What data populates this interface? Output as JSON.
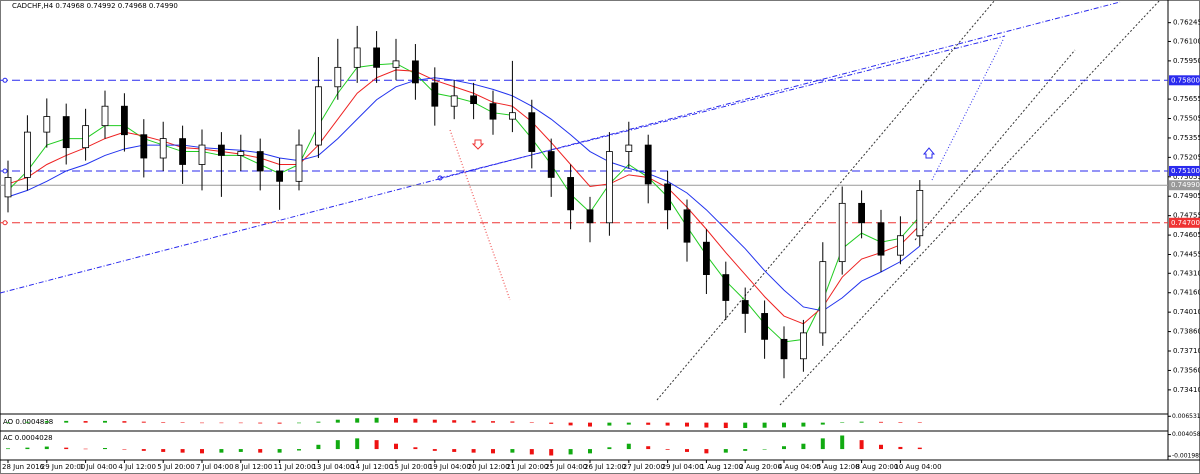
{
  "chart_data": {
    "type": "candlestick",
    "title": "CADCHF,H4 0.74968 0.74992 0.74968 0.74990",
    "categories": [
      "28 Jun 2016",
      null,
      "29 Jun 20:00",
      null,
      "1 Jul 04:00",
      null,
      "4 Jul 12:00",
      null,
      "5 Jul 20:00",
      null,
      "7 Jul 04:00",
      null,
      "8 Jul 12:00",
      null,
      "11 Jul 20:00",
      null,
      "13 Jul 04:00",
      null,
      "14 Jul 12:00",
      null,
      "15 Jul 20:00",
      null,
      "19 Jul 04:00",
      null,
      "20 Jul 12:00",
      null,
      "21 Jul 20:00",
      null,
      "25 Jul 04:00",
      null,
      "26 Jul 12:00",
      null,
      "27 Jul 20:00",
      null,
      "29 Jul 04:00",
      null,
      "1 Aug 12:00",
      null,
      "2 Aug 20:00",
      null,
      "4 Aug 04:00",
      null,
      "5 Aug 12:00",
      null,
      "8 Aug 20:00",
      null,
      "10 Aug 04:00",
      null
    ],
    "open": [
      0.749,
      0.7505,
      0.754,
      0.7552,
      0.7528,
      0.7545,
      0.756,
      0.7538,
      0.752,
      0.7535,
      0.7515,
      0.753,
      0.7522,
      0.7525,
      0.751,
      0.7502,
      0.753,
      0.7575,
      0.759,
      0.7605,
      0.759,
      0.7595,
      0.7578,
      0.756,
      0.7568,
      0.7562,
      0.755,
      0.7555,
      0.7525,
      0.7505,
      0.748,
      0.747,
      0.7525,
      0.753,
      0.75,
      0.748,
      0.7455,
      0.743,
      0.741,
      0.74,
      0.738,
      0.7365,
      0.7385,
      0.744,
      0.7485,
      0.747,
      0.7445,
      0.746
    ],
    "high": [
      0.7518,
      0.7553,
      0.7566,
      0.7562,
      0.7558,
      0.7572,
      0.757,
      0.755,
      0.7548,
      0.7545,
      0.7542,
      0.754,
      0.7538,
      0.7535,
      0.752,
      0.7542,
      0.7598,
      0.7612,
      0.7622,
      0.7618,
      0.7612,
      0.7608,
      0.759,
      0.758,
      0.7578,
      0.7572,
      0.7595,
      0.7565,
      0.7535,
      0.7515,
      0.749,
      0.754,
      0.7548,
      0.7538,
      0.751,
      0.7488,
      0.7465,
      0.744,
      0.742,
      0.741,
      0.739,
      0.7395,
      0.7455,
      0.7498,
      0.7495,
      0.748,
      0.7475,
      0.7503
    ],
    "low": [
      0.7478,
      0.7495,
      0.7528,
      0.7515,
      0.7518,
      0.7535,
      0.7525,
      0.7505,
      0.751,
      0.75,
      0.7495,
      0.749,
      0.751,
      0.7495,
      0.748,
      0.7495,
      0.752,
      0.7565,
      0.7578,
      0.7578,
      0.758,
      0.7565,
      0.7545,
      0.755,
      0.755,
      0.7538,
      0.754,
      0.7512,
      0.749,
      0.7465,
      0.7455,
      0.746,
      0.7512,
      0.7485,
      0.7465,
      0.744,
      0.7415,
      0.7395,
      0.7385,
      0.7365,
      0.735,
      0.7355,
      0.7375,
      0.743,
      0.7458,
      0.7432,
      0.7438,
      0.7452
    ],
    "close": [
      0.7505,
      0.754,
      0.7552,
      0.7528,
      0.7545,
      0.756,
      0.7538,
      0.752,
      0.7535,
      0.7515,
      0.753,
      0.7522,
      0.7525,
      0.751,
      0.7502,
      0.753,
      0.7575,
      0.759,
      0.7605,
      0.759,
      0.7595,
      0.7578,
      0.756,
      0.7568,
      0.7562,
      0.755,
      0.7555,
      0.7525,
      0.7505,
      0.748,
      0.747,
      0.7525,
      0.753,
      0.75,
      0.748,
      0.7455,
      0.743,
      0.741,
      0.74,
      0.738,
      0.7365,
      0.7385,
      0.744,
      0.7485,
      0.747,
      0.7445,
      0.746,
      0.7495
    ],
    "bull_color": "#ffffff",
    "bear_color": "#000000",
    "series": [
      {
        "color": "#22cc22",
        "values": [
          0.7495,
          0.751,
          0.753,
          0.7535,
          0.7535,
          0.7545,
          0.7545,
          0.7535,
          0.753,
          0.7525,
          0.7525,
          0.7522,
          0.7522,
          0.7515,
          0.7508,
          0.7515,
          0.7545,
          0.757,
          0.759,
          0.7592,
          0.7593,
          0.7585,
          0.757,
          0.7567,
          0.7563,
          0.7555,
          0.7553,
          0.7535,
          0.7515,
          0.7492,
          0.7478,
          0.75,
          0.7515,
          0.7505,
          0.749,
          0.7467,
          0.7445,
          0.7425,
          0.741,
          0.7392,
          0.7378,
          0.738,
          0.741,
          0.745,
          0.7462,
          0.7455,
          0.7458,
          0.7475
        ]
      },
      {
        "color": "#ee2222",
        "values": [
          0.75,
          0.7505,
          0.7515,
          0.7522,
          0.7528,
          0.7535,
          0.754,
          0.7537,
          0.7533,
          0.7528,
          0.7527,
          0.7525,
          0.7523,
          0.752,
          0.7515,
          0.7515,
          0.753,
          0.755,
          0.757,
          0.7582,
          0.7588,
          0.7587,
          0.758,
          0.7575,
          0.757,
          0.7563,
          0.756,
          0.7548,
          0.7532,
          0.7515,
          0.7498,
          0.75,
          0.7507,
          0.7505,
          0.7497,
          0.7482,
          0.7465,
          0.7447,
          0.743,
          0.7413,
          0.7398,
          0.7392,
          0.7405,
          0.7428,
          0.7442,
          0.7447,
          0.7453,
          0.7468
        ]
      },
      {
        "color": "#2233ee",
        "values": [
          0.749,
          0.7495,
          0.7502,
          0.751,
          0.7515,
          0.7522,
          0.7527,
          0.753,
          0.753,
          0.753,
          0.7528,
          0.7527,
          0.7526,
          0.7524,
          0.752,
          0.7518,
          0.7522,
          0.7535,
          0.755,
          0.7565,
          0.7575,
          0.758,
          0.7582,
          0.758,
          0.7577,
          0.7573,
          0.7568,
          0.756,
          0.755,
          0.7538,
          0.7525,
          0.7517,
          0.7512,
          0.7508,
          0.7502,
          0.7493,
          0.748,
          0.7465,
          0.745,
          0.7433,
          0.7418,
          0.7405,
          0.7402,
          0.7412,
          0.7425,
          0.7432,
          0.744,
          0.7452
        ]
      }
    ],
    "ylim": [
      0.7327,
      0.7642
    ],
    "yticks": [
      0.76245,
      {
        "value": 0.761,
        "label": "0.76100"
      },
      {
        "value": 0.7595,
        "label": "0.75950"
      },
      0.75655,
      0.75505,
      0.75355,
      0.75205,
      0.75055,
      0.74905,
      0.74755,
      0.74605,
      0.74455,
      {
        "value": 0.7431,
        "label": "0.74310"
      },
      {
        "value": 0.7416,
        "label": "0.74160"
      },
      {
        "value": 0.7401,
        "label": "0.74010"
      },
      {
        "value": 0.7386,
        "label": "0.73860"
      },
      {
        "value": 0.7371,
        "label": "0.73710"
      },
      {
        "value": 0.7356,
        "label": "0.73560"
      },
      {
        "value": 0.7341,
        "label": "0.73410"
      }
    ],
    "levels": [
      {
        "value": 0.758,
        "label": "0.75800",
        "color": "#2a2aee",
        "dashed": true
      },
      {
        "value": 0.751,
        "label": "0.75100",
        "color": "#2a2aee",
        "dashed": true
      },
      {
        "value": 0.7499,
        "label": "0.74990",
        "color": "#999999",
        "dashed": false
      },
      {
        "value": 0.747,
        "label": "0.74700",
        "color": "#ee3333",
        "dashed": true
      }
    ],
    "ao": {
      "label": "AO 0.0004838",
      "ylim": [
        -0.0065,
        0.0068
      ],
      "yticks": [
        0.006531
      ],
      "values": [
        0.0004,
        0.0008,
        0.0015,
        0.0018,
        0.0016,
        0.0018,
        0.0015,
        0.001,
        0.0006,
        0.0002,
        -0.0002,
        -0.0004,
        -0.0005,
        -0.0008,
        -0.001,
        -0.0006,
        0.001,
        0.003,
        0.0045,
        0.005,
        0.0048,
        0.004,
        0.003,
        0.0025,
        0.002,
        0.0015,
        0.0012,
        0.0002,
        -0.0012,
        -0.0028,
        -0.004,
        -0.003,
        -0.002,
        -0.0022,
        -0.003,
        -0.004,
        -0.005,
        -0.0055,
        -0.0055,
        -0.0052,
        -0.0048,
        -0.004,
        -0.002,
        0.0005,
        0.001,
        0.0008,
        0.0006,
        0.0005
      ]
    },
    "ac": {
      "label": "AC 0.0004028",
      "ylim": [
        -0.0025,
        0.0045
      ],
      "yticks": [
        0.004058,
        -0.001985
      ],
      "values": [
        0.0002,
        0.0004,
        0.0007,
        0.0004,
        0.0001,
        0.0003,
        0.0,
        -0.0005,
        -0.0008,
        -0.001,
        -0.0012,
        -0.001,
        -0.0008,
        -0.001,
        -0.001,
        -0.0004,
        0.0012,
        0.0025,
        0.003,
        0.0025,
        0.0015,
        0.0005,
        -0.0005,
        -0.0008,
        -0.001,
        -0.0012,
        -0.001,
        -0.0015,
        -0.0018,
        -0.0015,
        -0.0012,
        0.0005,
        0.0015,
        0.0008,
        -0.0002,
        -0.0008,
        -0.0012,
        -0.001,
        -0.0005,
        0.0,
        0.0008,
        0.0015,
        0.003,
        0.0038,
        0.0025,
        0.0012,
        0.0006,
        0.0004
      ]
    }
  }
}
